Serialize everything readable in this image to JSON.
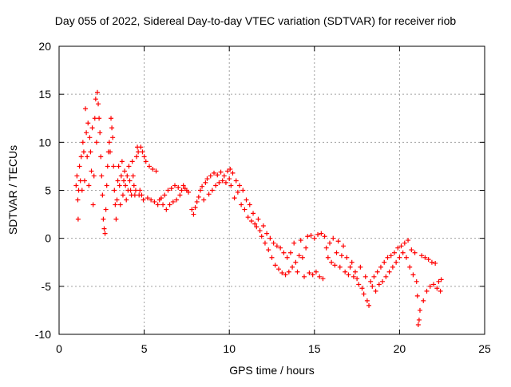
{
  "chart_data": {
    "type": "scatter",
    "title": "Day 055 of 2022, Sidereal Day-to-day VTEC variation (SDTVAR) for receiver riob",
    "xlabel": "GPS time / hours",
    "ylabel": "SDTVAR / TECUs",
    "xlim": [
      0,
      25
    ],
    "ylim": [
      -10,
      20
    ],
    "xticks": [
      "0",
      "5",
      "10",
      "15",
      "20",
      "25"
    ],
    "yticks": [
      "-10",
      "-5",
      "0",
      "5",
      "10",
      "15",
      "20"
    ],
    "grid": true,
    "legend": "none",
    "marker": "+",
    "color": "#ff0000",
    "series": [
      {
        "points": [
          [
            1.0,
            5.5
          ],
          [
            1.05,
            6.5
          ],
          [
            1.1,
            4.0
          ],
          [
            1.12,
            2.0
          ],
          [
            1.15,
            5.0
          ],
          [
            1.2,
            7.5
          ],
          [
            1.25,
            6.0
          ],
          [
            1.3,
            8.5
          ],
          [
            1.35,
            5.0
          ],
          [
            1.4,
            10.0
          ],
          [
            1.45,
            9.0
          ],
          [
            1.5,
            6.0
          ],
          [
            1.55,
            13.5
          ],
          [
            1.6,
            11.0
          ],
          [
            1.65,
            8.5
          ],
          [
            1.7,
            12.0
          ],
          [
            1.75,
            5.5
          ],
          [
            1.8,
            10.5
          ],
          [
            1.85,
            9.0
          ],
          [
            1.9,
            7.0
          ],
          [
            1.95,
            11.5
          ],
          [
            2.0,
            3.5
          ],
          [
            2.05,
            6.5
          ],
          [
            2.1,
            12.5
          ],
          [
            2.15,
            14.5
          ],
          [
            2.2,
            10.0
          ],
          [
            2.25,
            15.2
          ],
          [
            2.3,
            14.0
          ],
          [
            2.35,
            12.5
          ],
          [
            2.4,
            11.0
          ],
          [
            2.45,
            8.5
          ],
          [
            2.5,
            6.5
          ],
          [
            2.55,
            4.5
          ],
          [
            2.6,
            2.0
          ],
          [
            2.65,
            1.0
          ],
          [
            2.7,
            0.5
          ],
          [
            2.75,
            3.0
          ],
          [
            2.8,
            5.5
          ],
          [
            2.85,
            7.5
          ],
          [
            2.9,
            9.0
          ],
          [
            2.95,
            10.0
          ],
          [
            3.0,
            9.0
          ],
          [
            3.05,
            12.5
          ],
          [
            3.1,
            11.5
          ],
          [
            3.15,
            10.5
          ],
          [
            3.2,
            7.5
          ],
          [
            3.25,
            5.0
          ],
          [
            3.3,
            3.5
          ],
          [
            3.35,
            2.0
          ],
          [
            3.4,
            4.0
          ],
          [
            3.45,
            6.0
          ],
          [
            3.5,
            7.5
          ],
          [
            3.55,
            5.5
          ],
          [
            3.6,
            3.5
          ],
          [
            3.65,
            6.5
          ],
          [
            3.7,
            8.0
          ],
          [
            3.75,
            4.5
          ],
          [
            3.8,
            6.0
          ],
          [
            3.85,
            7.0
          ],
          [
            3.9,
            5.5
          ],
          [
            3.95,
            4.0
          ],
          [
            4.0,
            6.5
          ],
          [
            4.05,
            5.0
          ],
          [
            4.1,
            7.5
          ],
          [
            4.15,
            6.0
          ],
          [
            4.2,
            5.0
          ],
          [
            4.25,
            4.5
          ],
          [
            4.3,
            8.0
          ],
          [
            4.35,
            6.5
          ],
          [
            4.4,
            5.5
          ],
          [
            4.45,
            4.5
          ],
          [
            4.5,
            5.0
          ],
          [
            4.55,
            8.5
          ],
          [
            4.6,
            9.5
          ],
          [
            4.65,
            9.0
          ],
          [
            4.7,
            4.5
          ],
          [
            4.75,
            5.0
          ],
          [
            4.8,
            9.5
          ],
          [
            4.85,
            4.5
          ],
          [
            4.9,
            9.0
          ],
          [
            4.95,
            4.0
          ],
          [
            5.0,
            8.5
          ],
          [
            5.1,
            8.0
          ],
          [
            5.2,
            4.2
          ],
          [
            5.3,
            7.5
          ],
          [
            5.4,
            4.0
          ],
          [
            5.5,
            7.2
          ],
          [
            5.6,
            3.8
          ],
          [
            5.7,
            7.0
          ],
          [
            5.8,
            3.5
          ],
          [
            5.9,
            4.0
          ],
          [
            6.0,
            4.2
          ],
          [
            6.1,
            3.5
          ],
          [
            6.2,
            4.5
          ],
          [
            6.3,
            3.0
          ],
          [
            6.4,
            5.0
          ],
          [
            6.5,
            3.5
          ],
          [
            6.6,
            5.2
          ],
          [
            6.7,
            3.8
          ],
          [
            6.8,
            5.5
          ],
          [
            6.9,
            4.0
          ],
          [
            7.0,
            5.3
          ],
          [
            7.1,
            4.5
          ],
          [
            7.2,
            5.0
          ],
          [
            7.3,
            5.5
          ],
          [
            7.4,
            5.2
          ],
          [
            7.5,
            5.0
          ],
          [
            7.6,
            4.8
          ],
          [
            7.8,
            3.0
          ],
          [
            7.9,
            2.5
          ],
          [
            8.0,
            3.2
          ],
          [
            8.1,
            3.8
          ],
          [
            8.2,
            4.3
          ],
          [
            8.3,
            5.0
          ],
          [
            8.4,
            5.4
          ],
          [
            8.5,
            4.0
          ],
          [
            8.6,
            5.8
          ],
          [
            8.7,
            6.2
          ],
          [
            8.8,
            4.6
          ],
          [
            8.9,
            6.5
          ],
          [
            9.0,
            5.0
          ],
          [
            9.1,
            6.8
          ],
          [
            9.2,
            5.5
          ],
          [
            9.3,
            6.6
          ],
          [
            9.4,
            5.8
          ],
          [
            9.5,
            6.9
          ],
          [
            9.6,
            6.0
          ],
          [
            9.7,
            6.5
          ],
          [
            9.8,
            5.8
          ],
          [
            9.9,
            7.0
          ],
          [
            10.0,
            6.2
          ],
          [
            10.05,
            7.2
          ],
          [
            10.1,
            5.5
          ],
          [
            10.2,
            6.8
          ],
          [
            10.3,
            4.2
          ],
          [
            10.4,
            6.0
          ],
          [
            10.5,
            4.8
          ],
          [
            10.6,
            5.5
          ],
          [
            10.7,
            3.5
          ],
          [
            10.8,
            5.0
          ],
          [
            10.9,
            3.0
          ],
          [
            11.0,
            4.0
          ],
          [
            11.1,
            2.2
          ],
          [
            11.2,
            3.5
          ],
          [
            11.3,
            1.8
          ],
          [
            11.4,
            2.6
          ],
          [
            11.5,
            1.5
          ],
          [
            11.6,
            1.2
          ],
          [
            11.7,
            2.0
          ],
          [
            11.8,
            0.8
          ],
          [
            11.9,
            0.2
          ],
          [
            12.0,
            1.3
          ],
          [
            12.1,
            -0.5
          ],
          [
            12.2,
            0.5
          ],
          [
            12.3,
            -1.2
          ],
          [
            12.4,
            0.0
          ],
          [
            12.5,
            -2.0
          ],
          [
            12.6,
            -0.5
          ],
          [
            12.7,
            -2.8
          ],
          [
            12.8,
            -0.8
          ],
          [
            12.9,
            -3.2
          ],
          [
            13.0,
            -1.0
          ],
          [
            13.1,
            -3.6
          ],
          [
            13.2,
            -1.5
          ],
          [
            13.3,
            -3.8
          ],
          [
            13.4,
            -2.0
          ],
          [
            13.5,
            -3.5
          ],
          [
            13.6,
            -1.5
          ],
          [
            13.7,
            -3.0
          ],
          [
            13.8,
            -0.5
          ],
          [
            13.9,
            -2.5
          ],
          [
            14.0,
            -3.5
          ],
          [
            14.1,
            -1.8
          ],
          [
            14.2,
            -0.2
          ],
          [
            14.3,
            -2.0
          ],
          [
            14.4,
            -4.0
          ],
          [
            14.5,
            -1.0
          ],
          [
            14.6,
            0.2
          ],
          [
            14.7,
            -3.6
          ],
          [
            14.8,
            0.3
          ],
          [
            14.9,
            -3.8
          ],
          [
            15.0,
            0.0
          ],
          [
            15.1,
            -3.5
          ],
          [
            15.2,
            0.4
          ],
          [
            15.3,
            -4.0
          ],
          [
            15.4,
            0.5
          ],
          [
            15.5,
            -4.2
          ],
          [
            15.6,
            0.2
          ],
          [
            15.7,
            -1.0
          ],
          [
            15.8,
            -2.0
          ],
          [
            15.9,
            -0.5
          ],
          [
            16.0,
            -2.5
          ],
          [
            16.1,
            0.0
          ],
          [
            16.2,
            -2.8
          ],
          [
            16.3,
            -1.5
          ],
          [
            16.4,
            -0.3
          ],
          [
            16.5,
            -3.0
          ],
          [
            16.6,
            -1.8
          ],
          [
            16.7,
            -0.8
          ],
          [
            16.8,
            -3.5
          ],
          [
            16.9,
            -2.0
          ],
          [
            17.0,
            -3.8
          ],
          [
            17.1,
            -3.0
          ],
          [
            17.2,
            -2.5
          ],
          [
            17.3,
            -4.0
          ],
          [
            17.4,
            -3.5
          ],
          [
            17.5,
            -4.2
          ],
          [
            17.6,
            -4.8
          ],
          [
            17.7,
            -3.0
          ],
          [
            17.8,
            -5.2
          ],
          [
            17.9,
            -5.8
          ],
          [
            18.0,
            -4.0
          ],
          [
            18.1,
            -6.5
          ],
          [
            18.2,
            -7.0
          ],
          [
            18.3,
            -4.5
          ],
          [
            18.4,
            -5.0
          ],
          [
            18.5,
            -4.0
          ],
          [
            18.6,
            -5.5
          ],
          [
            18.7,
            -3.5
          ],
          [
            18.8,
            -4.8
          ],
          [
            18.9,
            -3.0
          ],
          [
            19.0,
            -4.5
          ],
          [
            19.1,
            -2.5
          ],
          [
            19.2,
            -4.0
          ],
          [
            19.3,
            -2.0
          ],
          [
            19.4,
            -3.5
          ],
          [
            19.5,
            -1.8
          ],
          [
            19.6,
            -3.0
          ],
          [
            19.7,
            -1.5
          ],
          [
            19.8,
            -2.5
          ],
          [
            19.9,
            -1.0
          ],
          [
            20.0,
            -2.0
          ],
          [
            20.1,
            -0.8
          ],
          [
            20.2,
            -1.5
          ],
          [
            20.3,
            -0.5
          ],
          [
            20.4,
            -2.0
          ],
          [
            20.5,
            -0.2
          ],
          [
            20.6,
            -3.0
          ],
          [
            20.7,
            -1.2
          ],
          [
            20.8,
            -3.8
          ],
          [
            20.9,
            -1.5
          ],
          [
            21.0,
            -4.5
          ],
          [
            21.05,
            -6.0
          ],
          [
            21.1,
            -9.0
          ],
          [
            21.15,
            -8.5
          ],
          [
            21.2,
            -7.5
          ],
          [
            21.3,
            -1.8
          ],
          [
            21.4,
            -6.5
          ],
          [
            21.5,
            -2.0
          ],
          [
            21.6,
            -5.5
          ],
          [
            21.7,
            -2.2
          ],
          [
            21.8,
            -5.0
          ],
          [
            21.9,
            -2.5
          ],
          [
            22.0,
            -4.8
          ],
          [
            22.1,
            -2.6
          ],
          [
            22.2,
            -5.2
          ],
          [
            22.3,
            -4.5
          ],
          [
            22.4,
            -5.5
          ],
          [
            22.45,
            -4.3
          ]
        ]
      }
    ]
  }
}
